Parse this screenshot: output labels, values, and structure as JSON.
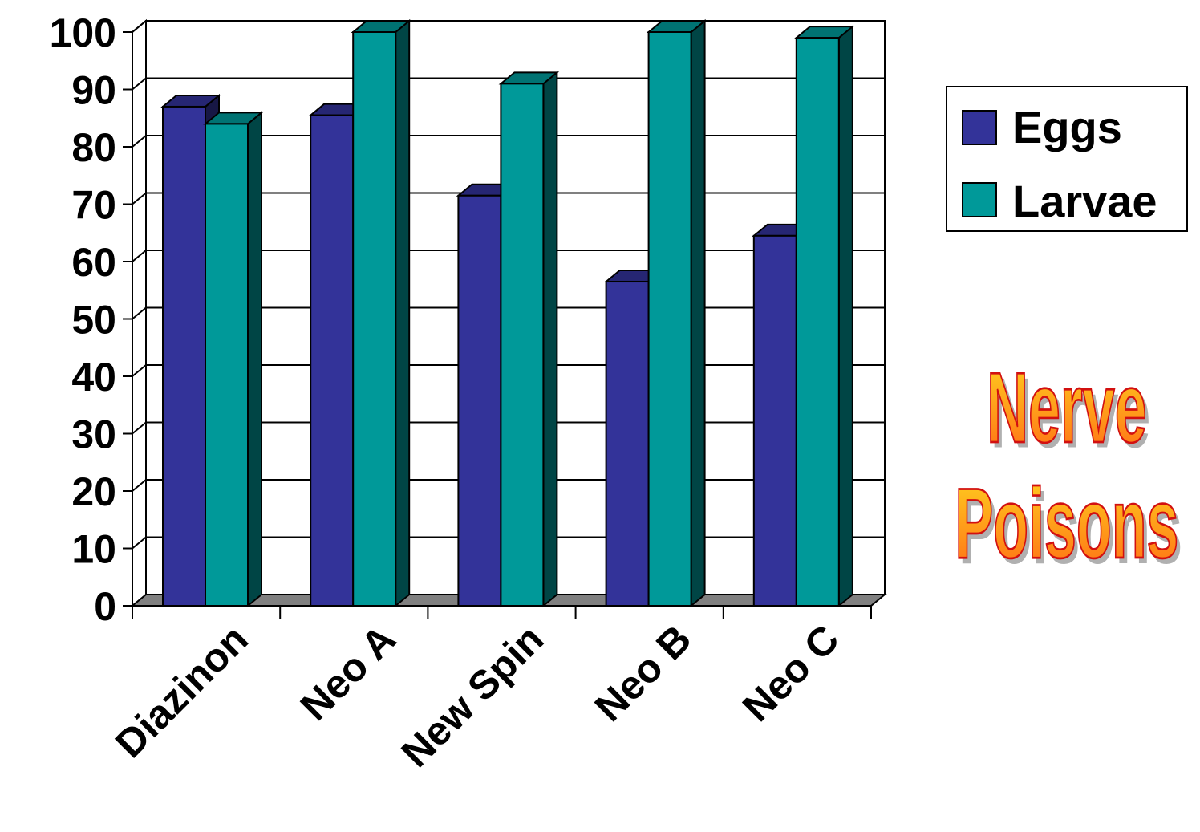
{
  "chart_data": {
    "type": "bar",
    "categories": [
      "Diazinon",
      "Neo A",
      "New Spin",
      "Neo B",
      "Neo C"
    ],
    "series": [
      {
        "name": "Eggs",
        "values": [
          87,
          85.5,
          71.5,
          56.5,
          64.5
        ],
        "color": "#333399"
      },
      {
        "name": "Larvae",
        "values": [
          84,
          100,
          91,
          100,
          99
        ],
        "color": "#009999"
      }
    ],
    "ylim": [
      0,
      100
    ],
    "yticks": [
      "0",
      "10",
      "20",
      "30",
      "40",
      "50",
      "60",
      "70",
      "80",
      "90",
      "100"
    ],
    "grid": true,
    "legend_position": "right",
    "annotation": [
      "Nerve",
      "Poisons"
    ]
  }
}
